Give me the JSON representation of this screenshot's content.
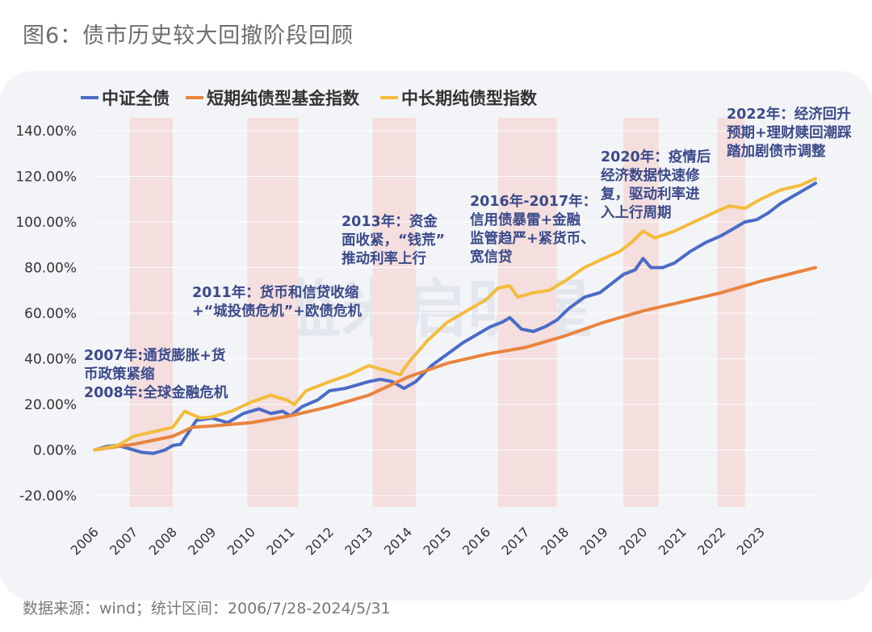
{
  "figure": {
    "title": "图6：债市历史较大回撤阶段回顾",
    "source": "数据来源：wind；统计区间：2006/7/28-2024/5/31",
    "watermark": "监米启明星"
  },
  "chart_data": {
    "type": "line",
    "title": "图6：债市历史较大回撤阶段回顾",
    "xlabel": "",
    "ylabel": "",
    "ylim": [
      -20,
      140
    ],
    "y_ticks": [
      "-20.00%",
      "0.00%",
      "20.00%",
      "40.00%",
      "60.00%",
      "80.00%",
      "100.00%",
      "120.00%",
      "140.00%"
    ],
    "y_tick_values": [
      -20,
      0,
      20,
      40,
      60,
      80,
      100,
      120,
      140
    ],
    "x_range": [
      2006.0,
      2024.4
    ],
    "x_ticks": [
      "2006",
      "2007",
      "2008",
      "2009",
      "2010",
      "2011",
      "2012",
      "2013",
      "2014",
      "2015",
      "2016",
      "2017",
      "2018",
      "2019",
      "2020",
      "2021",
      "2022",
      "2023"
    ],
    "x_tick_values": [
      2006,
      2007,
      2008,
      2009,
      2010,
      2011,
      2012,
      2013,
      2014,
      2015,
      2016,
      2017,
      2018,
      2019,
      2020,
      2021,
      2022,
      2023
    ],
    "legend_position": "top-left",
    "shaded_periods": [
      [
        2006.9,
        2008.0
      ],
      [
        2009.9,
        2011.2
      ],
      [
        2013.1,
        2014.2
      ],
      [
        2016.3,
        2017.8
      ],
      [
        2019.5,
        2020.4
      ],
      [
        2021.9,
        2022.6
      ]
    ],
    "colors": {
      "shade": "#f4dede",
      "grid": "#ffffff"
    },
    "series": [
      {
        "name": "中证全债",
        "color": "#4a6cc6",
        "x": [
          2006.0,
          2006.3,
          2006.6,
          2006.9,
          2007.2,
          2007.5,
          2007.8,
          2008.0,
          2008.2,
          2008.6,
          2009.0,
          2009.4,
          2009.8,
          2010.2,
          2010.5,
          2010.8,
          2011.0,
          2011.3,
          2011.7,
          2012.0,
          2012.4,
          2012.8,
          2013.0,
          2013.3,
          2013.6,
          2013.9,
          2014.2,
          2014.6,
          2015.0,
          2015.4,
          2015.8,
          2016.1,
          2016.4,
          2016.6,
          2016.9,
          2017.2,
          2017.5,
          2017.8,
          2018.1,
          2018.5,
          2018.9,
          2019.2,
          2019.5,
          2019.8,
          2020.0,
          2020.2,
          2020.5,
          2020.8,
          2021.2,
          2021.6,
          2022.0,
          2022.3,
          2022.6,
          2022.9,
          2023.2,
          2023.5,
          2023.8,
          2024.0,
          2024.4
        ],
        "values": [
          0,
          1.5,
          2,
          0.5,
          -1,
          -1.5,
          0,
          2,
          2.5,
          13,
          14,
          12,
          16,
          18,
          16,
          17,
          15,
          19,
          22,
          26,
          27,
          29,
          30,
          31,
          30,
          27,
          30,
          37,
          42,
          47,
          51,
          54,
          56,
          58,
          53,
          52,
          54,
          57,
          62,
          67,
          69,
          73,
          77,
          79,
          84,
          80,
          80,
          82,
          87,
          91,
          94,
          97,
          100,
          101,
          104,
          108,
          111,
          113,
          117
        ]
      },
      {
        "name": "短期纯债型基金指数",
        "color": "#e8843f",
        "x": [
          2006.0,
          2007.0,
          2008.0,
          2008.5,
          2009.0,
          2010.0,
          2011.0,
          2012.0,
          2013.0,
          2014.0,
          2015.0,
          2016.0,
          2017.0,
          2018.0,
          2019.0,
          2020.0,
          2021.0,
          2022.0,
          2023.0,
          2024.4
        ],
        "values": [
          0,
          2.5,
          6,
          10,
          10.5,
          12,
          15,
          19,
          24,
          32,
          38,
          42,
          45,
          50,
          56,
          61,
          65,
          69,
          74,
          80
        ]
      },
      {
        "name": "中长期纯债型指数",
        "color": "#f3bc3c",
        "x": [
          2006.0,
          2006.6,
          2007.0,
          2007.5,
          2008.0,
          2008.3,
          2008.7,
          2009.0,
          2009.5,
          2010.0,
          2010.5,
          2010.9,
          2011.1,
          2011.4,
          2012.0,
          2012.5,
          2013.0,
          2013.4,
          2013.8,
          2014.0,
          2014.5,
          2015.0,
          2015.5,
          2016.0,
          2016.3,
          2016.6,
          2016.8,
          2017.2,
          2017.6,
          2018.0,
          2018.5,
          2019.0,
          2019.4,
          2019.7,
          2020.0,
          2020.3,
          2020.8,
          2021.3,
          2021.8,
          2022.2,
          2022.6,
          2023.0,
          2023.5,
          2024.0,
          2024.4
        ],
        "values": [
          0,
          2,
          6,
          8,
          10,
          17,
          14,
          14.5,
          17,
          21,
          24,
          22,
          20,
          26,
          30,
          33,
          37,
          35,
          33,
          38,
          48,
          56,
          61,
          66,
          71,
          72,
          67,
          69,
          70,
          74,
          80,
          84,
          87,
          91,
          96,
          93,
          96,
          100,
          104,
          107,
          106,
          110,
          114,
          116,
          119
        ]
      }
    ],
    "annotations": [
      {
        "lines": [
          "2007年:通货膨胀+货",
          "币政策紧缩",
          "2008年:全球金融危机"
        ]
      },
      {
        "lines": [
          "2011年：货币和信贷收缩",
          "+“城投债危机”+欧债危机"
        ]
      },
      {
        "lines": [
          "2013年：资金",
          "面收紧，“钱荒”",
          "推动利率上行"
        ]
      },
      {
        "lines": [
          "2016年-2017年：",
          "信用债暴雷+金融",
          "监管趋严+紧货币、",
          "宽信贷"
        ]
      },
      {
        "lines": [
          "2020年：疫情后",
          "经济数据快速修",
          "复，驱动利率进",
          "入上行周期"
        ]
      },
      {
        "lines": [
          "2022年：经济回升",
          "预期+理财赎回潮踩",
          "踏加剧债市调整"
        ]
      }
    ]
  }
}
